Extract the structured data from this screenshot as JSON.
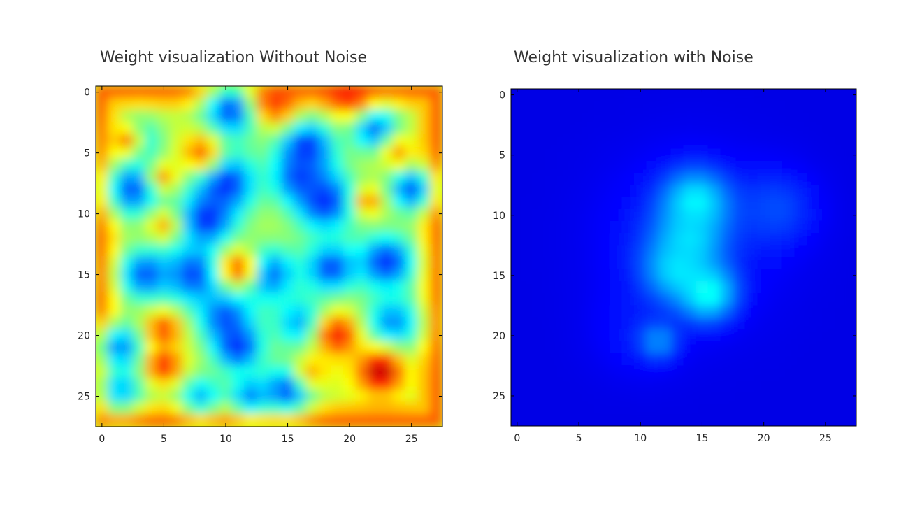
{
  "chart_data": [
    {
      "type": "heatmap",
      "title": "Weight visualization Without Noise",
      "xlabel": "",
      "ylabel": "",
      "colormap": "jet",
      "grid": false,
      "x_ticks": [
        0,
        5,
        10,
        15,
        20,
        25
      ],
      "y_ticks": [
        0,
        5,
        10,
        15,
        20,
        25
      ],
      "xlim": [
        -0.5,
        27.5
      ],
      "ylim": [
        27.5,
        -0.5
      ],
      "grid_size": [
        28,
        28
      ],
      "value_range": [
        0,
        1
      ],
      "background_level": 0.58,
      "border_level": 0.78,
      "blobs": [
        {
          "x": 10.5,
          "y": 1.5,
          "r": 1.6,
          "v": 0.18
        },
        {
          "x": 16.5,
          "y": 4.5,
          "r": 1.6,
          "v": 0.15
        },
        {
          "x": 22,
          "y": 3,
          "r": 1.3,
          "v": 0.2
        },
        {
          "x": 3,
          "y": 4,
          "r": 1.3,
          "v": 0.3
        },
        {
          "x": 2.5,
          "y": 8,
          "r": 1.6,
          "v": 0.2
        },
        {
          "x": 10,
          "y": 7.5,
          "r": 1.8,
          "v": 0.15
        },
        {
          "x": 8.5,
          "y": 10.5,
          "r": 1.6,
          "v": 0.15
        },
        {
          "x": 18,
          "y": 9,
          "r": 1.8,
          "v": 0.15
        },
        {
          "x": 16,
          "y": 7,
          "r": 1.5,
          "v": 0.18
        },
        {
          "x": 25,
          "y": 8,
          "r": 1.3,
          "v": 0.2
        },
        {
          "x": 3.5,
          "y": 15,
          "r": 1.5,
          "v": 0.2
        },
        {
          "x": 7.5,
          "y": 15,
          "r": 1.8,
          "v": 0.18
        },
        {
          "x": 13.5,
          "y": 15,
          "r": 1.6,
          "v": 0.2
        },
        {
          "x": 18.5,
          "y": 14.5,
          "r": 1.5,
          "v": 0.18
        },
        {
          "x": 23,
          "y": 14,
          "r": 1.6,
          "v": 0.15
        },
        {
          "x": 10,
          "y": 18.5,
          "r": 1.6,
          "v": 0.2
        },
        {
          "x": 11,
          "y": 21,
          "r": 1.4,
          "v": 0.15
        },
        {
          "x": 1.5,
          "y": 21,
          "r": 1.4,
          "v": 0.25
        },
        {
          "x": 16,
          "y": 19,
          "r": 1.5,
          "v": 0.28
        },
        {
          "x": 23.5,
          "y": 19,
          "r": 1.6,
          "v": 0.25
        },
        {
          "x": 15,
          "y": 24.5,
          "r": 1.4,
          "v": 0.18
        },
        {
          "x": 1.5,
          "y": 24.5,
          "r": 1.3,
          "v": 0.3
        },
        {
          "x": 12,
          "y": 25,
          "r": 1.2,
          "v": 0.25
        },
        {
          "x": 8,
          "y": 25,
          "r": 1.2,
          "v": 0.3
        },
        {
          "x": 2,
          "y": 4,
          "r": 1.0,
          "v": 0.75
        },
        {
          "x": 8,
          "y": 5,
          "r": 1.1,
          "v": 0.78
        },
        {
          "x": 5,
          "y": 7,
          "r": 0.8,
          "v": 0.72
        },
        {
          "x": 5,
          "y": 11,
          "r": 0.8,
          "v": 0.7
        },
        {
          "x": 21.5,
          "y": 9,
          "r": 0.8,
          "v": 0.75
        },
        {
          "x": 24,
          "y": 5,
          "r": 0.9,
          "v": 0.72
        },
        {
          "x": 11,
          "y": 14.5,
          "r": 1.1,
          "v": 0.8
        },
        {
          "x": 5,
          "y": 19.5,
          "r": 1.0,
          "v": 0.82
        },
        {
          "x": 5,
          "y": 22.5,
          "r": 1.0,
          "v": 0.86
        },
        {
          "x": 19,
          "y": 20,
          "r": 1.2,
          "v": 0.88
        },
        {
          "x": 22.5,
          "y": 23,
          "r": 1.3,
          "v": 0.95
        },
        {
          "x": 20,
          "y": 0,
          "r": 1.4,
          "v": 0.86
        },
        {
          "x": 14,
          "y": 1,
          "r": 1.3,
          "v": 0.82
        },
        {
          "x": 17,
          "y": 23,
          "r": 1.0,
          "v": 0.7
        }
      ]
    },
    {
      "type": "heatmap",
      "title": "Weight visualization with Noise",
      "xlabel": "",
      "ylabel": "",
      "colormap": "jet",
      "grid": false,
      "x_ticks": [
        0,
        5,
        10,
        15,
        20,
        25
      ],
      "y_ticks": [
        0,
        5,
        10,
        15,
        20,
        25
      ],
      "xlim": [
        -0.5,
        27.5
      ],
      "ylim": [
        27.5,
        -0.5
      ],
      "grid_size": [
        28,
        28
      ],
      "value_range": [
        0,
        1
      ],
      "background_level": 0.1,
      "border_level": 0.1,
      "blobs": [
        {
          "x": 14,
          "y": 12,
          "r": 4.5,
          "v": 0.18
        },
        {
          "x": 21,
          "y": 9.5,
          "r": 2.2,
          "v": 0.2
        },
        {
          "x": 10,
          "y": 19.5,
          "r": 2.5,
          "v": 0.15
        },
        {
          "x": 14.5,
          "y": 9,
          "r": 1.8,
          "v": 0.38
        },
        {
          "x": 14,
          "y": 12,
          "r": 1.6,
          "v": 0.35
        },
        {
          "x": 13,
          "y": 14.5,
          "r": 1.8,
          "v": 0.35
        },
        {
          "x": 15.5,
          "y": 16.5,
          "r": 1.5,
          "v": 0.4
        },
        {
          "x": 11.5,
          "y": 20.5,
          "r": 1.0,
          "v": 0.28
        }
      ]
    }
  ]
}
